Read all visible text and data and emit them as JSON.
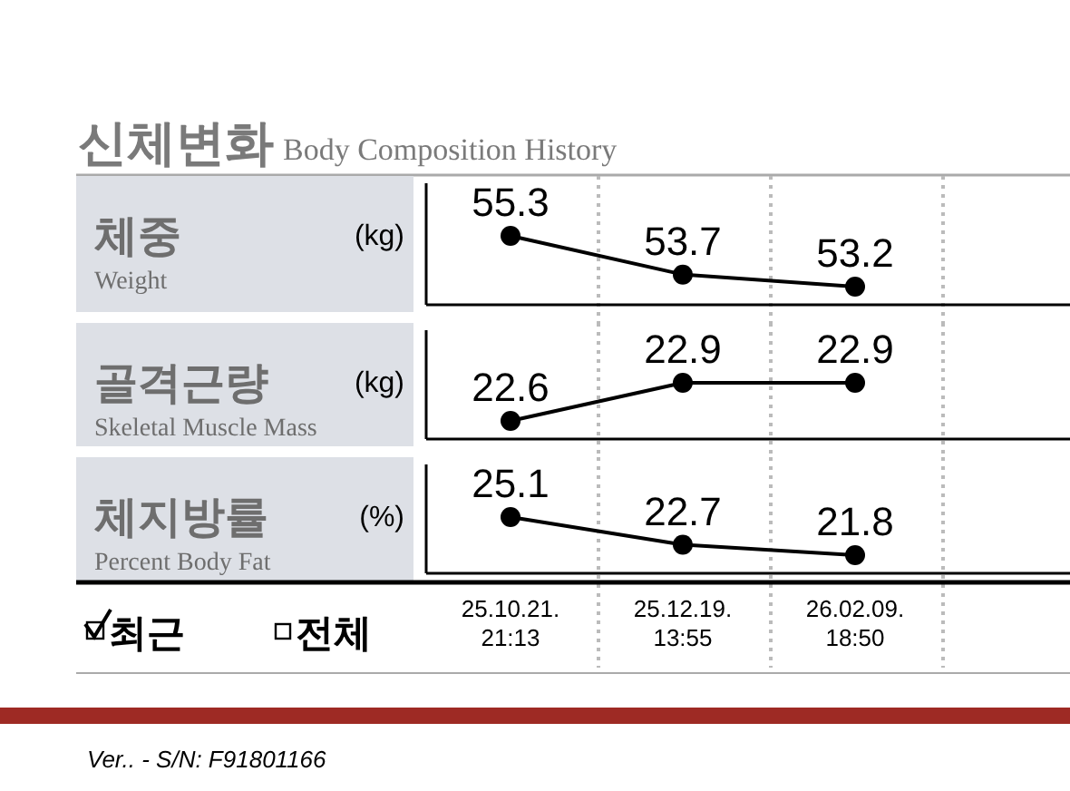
{
  "chart_data": [
    {
      "type": "line",
      "title": "신체변화 Body Composition History",
      "ylabel": "체중",
      "annotations": [
        "(kg)",
        "Weight"
      ],
      "categories": [
        null,
        null,
        null
      ],
      "values": [
        55.3,
        53.7,
        53.2
      ],
      "color": "#000000",
      "marker": "circle",
      "data_labels": true,
      "tick_labels": false
    },
    {
      "type": "line",
      "ylabel": "골격근량",
      "annotations": [
        "(kg)",
        "Skeletal Muscle Mass"
      ],
      "categories": [
        null,
        null,
        null
      ],
      "values": [
        22.6,
        22.9,
        22.9
      ],
      "color": "#000000",
      "marker": "circle",
      "data_labels": true,
      "tick_labels": false
    },
    {
      "type": "line",
      "ylabel": "체지방률",
      "annotations": [
        "(%)",
        "Percent Body Fat",
        "최근",
        "전체",
        "Ver.. - S/N: F91801166"
      ],
      "categories": [
        "25.10.21. 21:13",
        "25.12.19. 13:55",
        "26.02.09. 18:50"
      ],
      "values": [
        25.1,
        22.7,
        21.8
      ],
      "color": "#000000",
      "marker": "circle",
      "data_labels": true,
      "tick_labels": "x"
    }
  ]
}
